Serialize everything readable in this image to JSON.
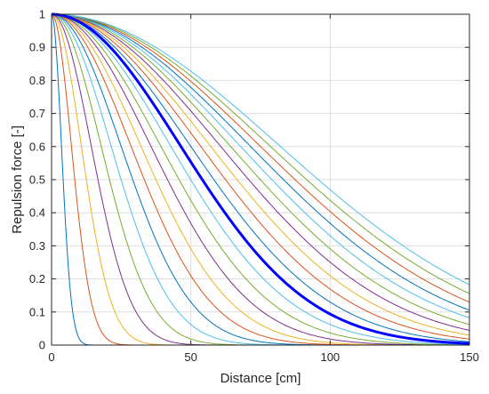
{
  "chart_data": {
    "type": "line",
    "title": "",
    "xlabel": "Distance [cm]",
    "ylabel": "Repulsion force [-]",
    "xlim": [
      0,
      150
    ],
    "ylim": [
      0,
      1
    ],
    "x_ticks": [
      0,
      50,
      100,
      150
    ],
    "y_ticks": [
      0,
      0.1,
      0.2,
      0.3,
      0.4,
      0.5,
      0.6,
      0.7,
      0.8,
      0.9,
      1
    ],
    "grid": true,
    "legend": "none",
    "function": "y = exp(-(x/d)^2), one curve per width parameter d (cm)",
    "series": [
      {
        "d": 5,
        "color": "#0072bd",
        "emphasis": false
      },
      {
        "d": 10,
        "color": "#d95319",
        "emphasis": false
      },
      {
        "d": 15,
        "color": "#edb120",
        "emphasis": false
      },
      {
        "d": 20,
        "color": "#7e2f8e",
        "emphasis": false
      },
      {
        "d": 25,
        "color": "#77ac30",
        "emphasis": false
      },
      {
        "d": 30,
        "color": "#4dbeee",
        "emphasis": false
      },
      {
        "d": 35,
        "color": "#0072bd",
        "emphasis": false
      },
      {
        "d": 40,
        "color": "#d95319",
        "emphasis": false
      },
      {
        "d": 45,
        "color": "#edb120",
        "emphasis": false
      },
      {
        "d": 50,
        "color": "#7e2f8e",
        "emphasis": false
      },
      {
        "d": 55,
        "color": "#77ac30",
        "emphasis": false
      },
      {
        "d": 60,
        "color": "#4dbeee",
        "emphasis": false
      },
      {
        "d": 65,
        "color": "#0000ff",
        "emphasis": true
      },
      {
        "d": 70,
        "color": "#0072bd",
        "emphasis": false
      },
      {
        "d": 75,
        "color": "#d95319",
        "emphasis": false
      },
      {
        "d": 80,
        "color": "#edb120",
        "emphasis": false
      },
      {
        "d": 85,
        "color": "#7e2f8e",
        "emphasis": false
      },
      {
        "d": 90,
        "color": "#77ac30",
        "emphasis": false
      },
      {
        "d": 95,
        "color": "#4dbeee",
        "emphasis": false
      },
      {
        "d": 100,
        "color": "#0072bd",
        "emphasis": false
      },
      {
        "d": 105,
        "color": "#d95319",
        "emphasis": false
      },
      {
        "d": 110,
        "color": "#77ac30",
        "emphasis": false
      },
      {
        "d": 115,
        "color": "#4dbeee",
        "emphasis": false
      }
    ]
  }
}
